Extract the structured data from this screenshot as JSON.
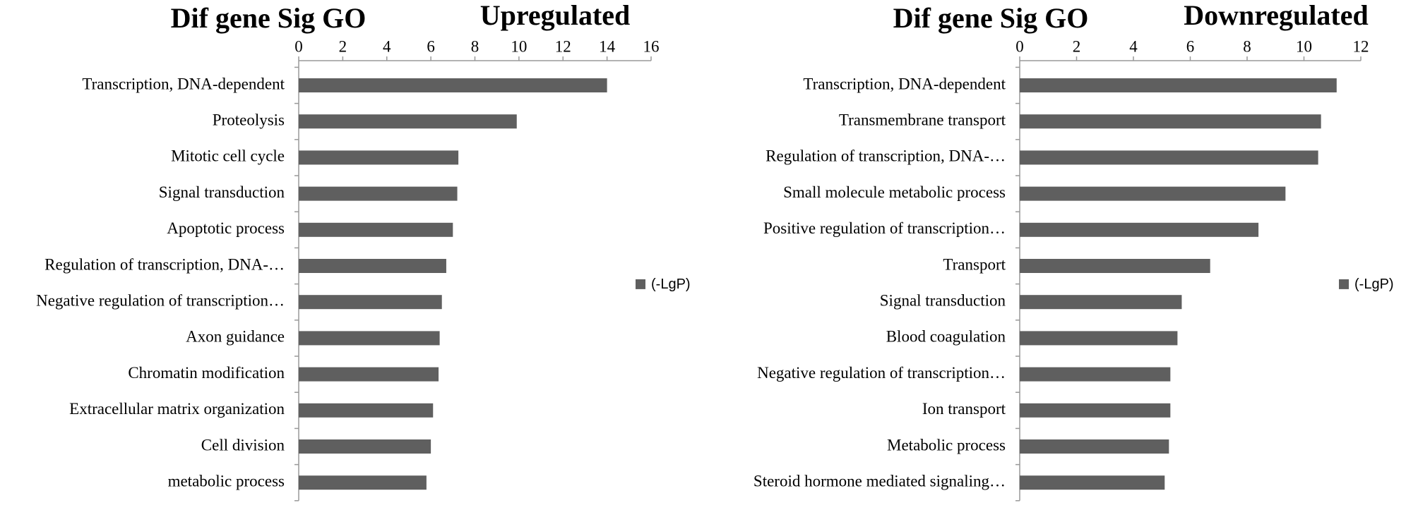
{
  "chart_data": [
    {
      "type": "bar",
      "orientation": "horizontal",
      "title": "Dif gene Sig GO",
      "subtitle": "Upregulated",
      "categories": [
        "Transcription, DNA-dependent",
        "Proteolysis",
        "Mitotic cell cycle",
        "Signal transduction",
        "Apoptotic process",
        "Regulation of transcription, DNA-…",
        "Negative regulation of transcription…",
        "Axon guidance",
        "Chromatin modification",
        "Extracellular matrix organization",
        "Cell division",
        "metabolic process"
      ],
      "series": [
        {
          "name": "(-LgP)",
          "color": "#5f5f5f",
          "values": [
            14.0,
            9.9,
            7.25,
            7.2,
            7.0,
            6.7,
            6.5,
            6.4,
            6.35,
            6.1,
            6.0,
            5.8
          ]
        }
      ],
      "xlim": [
        0,
        16
      ],
      "xticks": [
        0,
        2,
        4,
        6,
        8,
        10,
        12,
        14,
        16
      ],
      "legend": "right",
      "grid": false
    },
    {
      "type": "bar",
      "orientation": "horizontal",
      "title": "Dif gene Sig GO",
      "subtitle": "Downregulated",
      "categories": [
        "Transcription, DNA-dependent",
        "Transmembrane transport",
        "Regulation of transcription, DNA-…",
        "Small molecule metabolic process",
        "Positive regulation of transcription…",
        "Transport",
        "Signal transduction",
        "Blood coagulation",
        "Negative regulation of transcription…",
        "Ion transport",
        "Metabolic process",
        "Steroid hormone mediated signaling…"
      ],
      "series": [
        {
          "name": "(-LgP)",
          "color": "#5f5f5f",
          "values": [
            11.15,
            10.6,
            10.5,
            9.35,
            8.4,
            6.7,
            5.7,
            5.55,
            5.3,
            5.3,
            5.25,
            5.1
          ]
        }
      ],
      "xlim": [
        0,
        12
      ],
      "xticks": [
        0,
        2,
        4,
        6,
        8,
        10,
        12
      ],
      "legend": "right",
      "grid": false
    }
  ]
}
